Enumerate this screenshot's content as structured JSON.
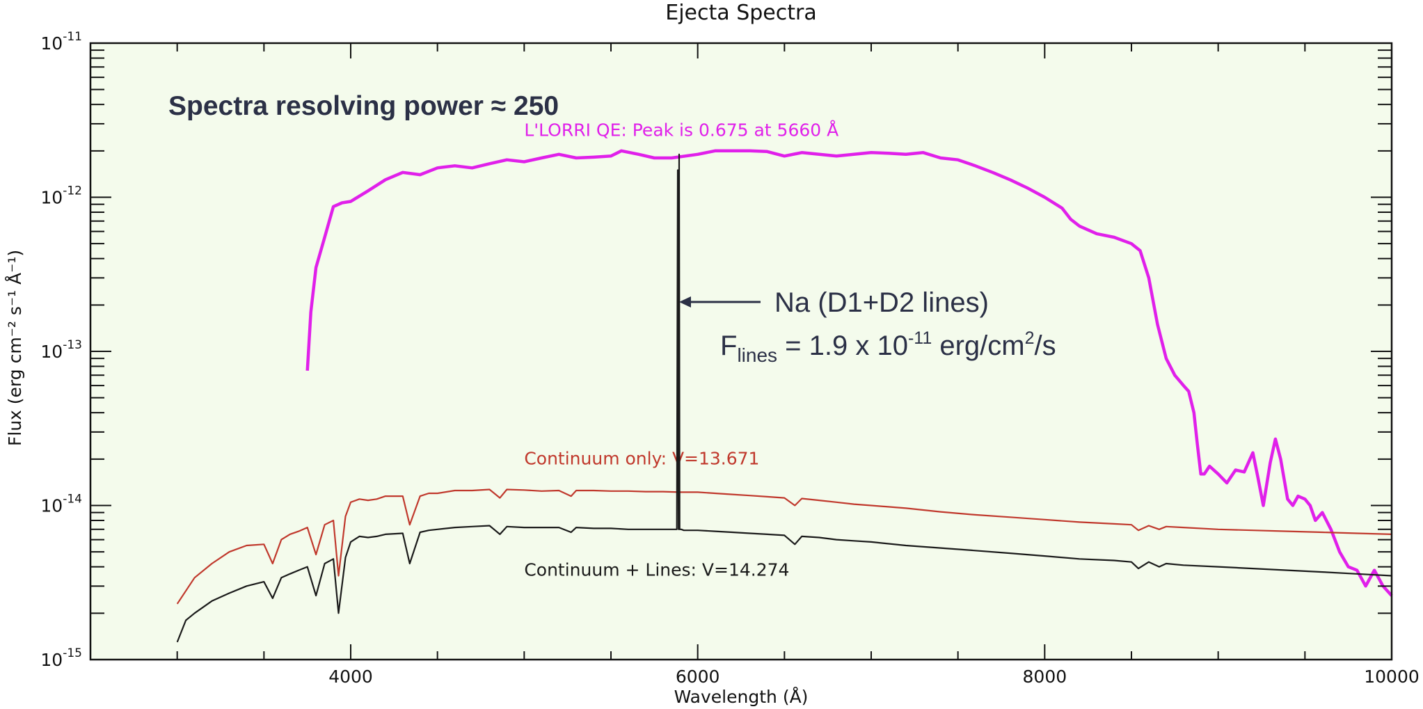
{
  "chart_data": {
    "type": "line",
    "title": "Ejecta Spectra",
    "xlabel": "Wavelength (Å)",
    "ylabel": "Flux (erg cm⁻² s⁻¹ Å⁻¹)",
    "xlim": [
      2500,
      10000
    ],
    "ylim": [
      1e-15,
      1e-11
    ],
    "y_scale": "log",
    "grid": false,
    "background_color": "#f4fbec",
    "x_ticks": [
      4000,
      6000,
      8000,
      10000
    ],
    "x_tick_labels": [
      "4000",
      "6000",
      "8000",
      "10000"
    ],
    "y_ticks": [
      {
        "base": "10",
        "exp": "-15"
      },
      {
        "base": "10",
        "exp": "-14"
      },
      {
        "base": "10",
        "exp": "-13"
      },
      {
        "base": "10",
        "exp": "-12"
      },
      {
        "base": "10",
        "exp": "-11"
      }
    ],
    "annotations": {
      "resolving_power": "Spectra resolving power ≈ 250",
      "na_label": "Na (D1+D2 lines)",
      "flux_prefix": "F",
      "flux_subscript": "lines",
      "flux_middle": " = 1.9 x 10",
      "flux_exp": "-11",
      "flux_units_a": " erg/cm",
      "flux_units_exp": "2",
      "flux_units_b": "/s"
    },
    "series": [
      {
        "name": "L'LORRI QE: Peak is 0.675 at 5660 Å",
        "color": "#e020ea",
        "label_x": 5000,
        "label_y": 2.5e-12,
        "x": [
          3750,
          3770,
          3800,
          3850,
          3900,
          3950,
          4000,
          4100,
          4200,
          4300,
          4400,
          4500,
          4600,
          4700,
          4800,
          4900,
          5000,
          5100,
          5200,
          5300,
          5400,
          5500,
          5560,
          5660,
          5750,
          5850,
          6000,
          6100,
          6200,
          6300,
          6400,
          6500,
          6600,
          6700,
          6800,
          6900,
          7000,
          7100,
          7200,
          7300,
          7400,
          7500,
          7600,
          7700,
          7800,
          7900,
          8000,
          8100,
          8150,
          8200,
          8300,
          8400,
          8500,
          8550,
          8600,
          8650,
          8700,
          8750,
          8800,
          8830,
          8860,
          8880,
          8900,
          8920,
          8950,
          9000,
          9050,
          9100,
          9150,
          9200,
          9230,
          9260,
          9300,
          9330,
          9360,
          9400,
          9430,
          9460,
          9500,
          9530,
          9560,
          9600,
          9650,
          9700,
          9750,
          9800,
          9850,
          9900,
          9950,
          10000
        ],
        "y": [
          7.5e-14,
          1.8e-13,
          3.5e-13,
          5.5e-13,
          8.7e-13,
          9.2e-13,
          9.4e-13,
          1.1e-12,
          1.3e-12,
          1.45e-12,
          1.4e-12,
          1.55e-12,
          1.6e-12,
          1.55e-12,
          1.65e-12,
          1.75e-12,
          1.7e-12,
          1.8e-12,
          1.9e-12,
          1.8e-12,
          1.82e-12,
          1.85e-12,
          2e-12,
          1.9e-12,
          1.8e-12,
          1.8e-12,
          1.9e-12,
          2e-12,
          2e-12,
          2e-12,
          1.98e-12,
          1.85e-12,
          1.95e-12,
          1.9e-12,
          1.85e-12,
          1.9e-12,
          1.95e-12,
          1.93e-12,
          1.9e-12,
          1.95e-12,
          1.8e-12,
          1.75e-12,
          1.6e-12,
          1.45e-12,
          1.3e-12,
          1.15e-12,
          1e-12,
          8.5e-13,
          7.2e-13,
          6.5e-13,
          5.8e-13,
          5.5e-13,
          5e-13,
          4.5e-13,
          3e-13,
          1.5e-13,
          9e-14,
          7e-14,
          6e-14,
          5.5e-14,
          4e-14,
          2.5e-14,
          1.6e-14,
          1.6e-14,
          1.8e-14,
          1.6e-14,
          1.4e-14,
          1.7e-14,
          1.65e-14,
          2.2e-14,
          1.5e-14,
          1e-14,
          1.9e-14,
          2.7e-14,
          2e-14,
          1.1e-14,
          1e-14,
          1.15e-14,
          1.1e-14,
          1e-14,
          8e-15,
          9e-15,
          7e-15,
          5e-15,
          4e-15,
          3.8e-15,
          3e-15,
          3.8e-15,
          3e-15,
          2.6e-15
        ]
      },
      {
        "name": "Continuum only: V=13.671",
        "color": "#c0382c",
        "label_x": 5000,
        "label_y": 1.85e-14,
        "x": [
          3000,
          3100,
          3200,
          3300,
          3400,
          3500,
          3550,
          3600,
          3650,
          3700,
          3750,
          3800,
          3850,
          3900,
          3930,
          3970,
          4000,
          4050,
          4100,
          4150,
          4200,
          4300,
          4340,
          4400,
          4450,
          4500,
          4600,
          4700,
          4800,
          4860,
          4900,
          5000,
          5100,
          5200,
          5270,
          5300,
          5400,
          5500,
          5600,
          5700,
          5800,
          5900,
          6000,
          6100,
          6200,
          6300,
          6400,
          6500,
          6560,
          6600,
          6700,
          6800,
          6900,
          7000,
          7200,
          7400,
          7600,
          7800,
          8000,
          8200,
          8400,
          8500,
          8540,
          8600,
          8660,
          8700,
          8800,
          9000,
          9200,
          9400,
          9600,
          9800,
          10000
        ],
        "y": [
          2.3e-15,
          3.4e-15,
          4.2e-15,
          5e-15,
          5.5e-15,
          5.6e-15,
          4.2e-15,
          6e-15,
          6.5e-15,
          6.8e-15,
          7.2e-15,
          4.8e-15,
          7.5e-15,
          8e-15,
          3.5e-15,
          8.5e-15,
          1.05e-14,
          1.1e-14,
          1.08e-14,
          1.1e-14,
          1.15e-14,
          1.15e-14,
          7.5e-15,
          1.15e-14,
          1.2e-14,
          1.2e-14,
          1.25e-14,
          1.25e-14,
          1.27e-14,
          1.12e-14,
          1.27e-14,
          1.26e-14,
          1.24e-14,
          1.25e-14,
          1.15e-14,
          1.25e-14,
          1.25e-14,
          1.24e-14,
          1.24e-14,
          1.23e-14,
          1.23e-14,
          1.22e-14,
          1.22e-14,
          1.2e-14,
          1.18e-14,
          1.16e-14,
          1.14e-14,
          1.12e-14,
          1e-14,
          1.11e-14,
          1.08e-14,
          1.05e-14,
          1.02e-14,
          1e-14,
          9.6e-15,
          9.1e-15,
          8.7e-15,
          8.4e-15,
          8.1e-15,
          7.8e-15,
          7.6e-15,
          7.5e-15,
          6.9e-15,
          7.4e-15,
          7e-15,
          7.3e-15,
          7.2e-15,
          7e-15,
          6.9e-15,
          6.8e-15,
          6.7e-15,
          6.6e-15,
          6.5e-15
        ]
      },
      {
        "name": "Continuum + Lines: V=14.274",
        "color": "#1a1a1a",
        "label_x": 5000,
        "label_y": 3.5e-15,
        "x": [
          3000,
          3050,
          3100,
          3200,
          3300,
          3400,
          3500,
          3550,
          3600,
          3650,
          3700,
          3750,
          3800,
          3850,
          3900,
          3930,
          3970,
          4000,
          4050,
          4100,
          4150,
          4200,
          4300,
          4340,
          4400,
          4450,
          4500,
          4600,
          4700,
          4800,
          4860,
          4900,
          5000,
          5100,
          5200,
          5270,
          5300,
          5400,
          5500,
          5600,
          5700,
          5800,
          5880,
          5885,
          5890,
          5893,
          5896,
          5900,
          5905,
          5920,
          6000,
          6100,
          6200,
          6300,
          6400,
          6500,
          6560,
          6600,
          6700,
          6800,
          6900,
          7000,
          7200,
          7400,
          7600,
          7800,
          8000,
          8200,
          8400,
          8500,
          8540,
          8600,
          8660,
          8700,
          8800,
          9000,
          9200,
          9400,
          9600,
          9800,
          10000
        ],
        "y": [
          1.3e-15,
          1.8e-15,
          2e-15,
          2.4e-15,
          2.7e-15,
          3e-15,
          3.2e-15,
          2.5e-15,
          3.4e-15,
          3.6e-15,
          3.8e-15,
          4e-15,
          2.6e-15,
          4.2e-15,
          4.5e-15,
          2e-15,
          4.6e-15,
          5.8e-15,
          6.3e-15,
          6.2e-15,
          6.3e-15,
          6.5e-15,
          6.6e-15,
          4.2e-15,
          6.7e-15,
          6.9e-15,
          7e-15,
          7.2e-15,
          7.3e-15,
          7.4e-15,
          6.5e-15,
          7.3e-15,
          7.2e-15,
          7.2e-15,
          7.2e-15,
          6.7e-15,
          7.2e-15,
          7.1e-15,
          7.1e-15,
          7e-15,
          7e-15,
          7e-15,
          7e-15,
          1.5e-12,
          7e-15,
          1.9e-12,
          7e-15,
          7e-15,
          7e-15,
          6.9e-15,
          6.9e-15,
          6.8e-15,
          6.7e-15,
          6.6e-15,
          6.5e-15,
          6.4e-15,
          5.6e-15,
          6.3e-15,
          6.2e-15,
          6e-15,
          5.9e-15,
          5.8e-15,
          5.5e-15,
          5.3e-15,
          5.1e-15,
          4.9e-15,
          4.7e-15,
          4.5e-15,
          4.4e-15,
          4.3e-15,
          3.9e-15,
          4.3e-15,
          4e-15,
          4.2e-15,
          4.1e-15,
          4e-15,
          3.9e-15,
          3.8e-15,
          3.7e-15,
          3.6e-15,
          3.5e-15
        ]
      }
    ]
  }
}
